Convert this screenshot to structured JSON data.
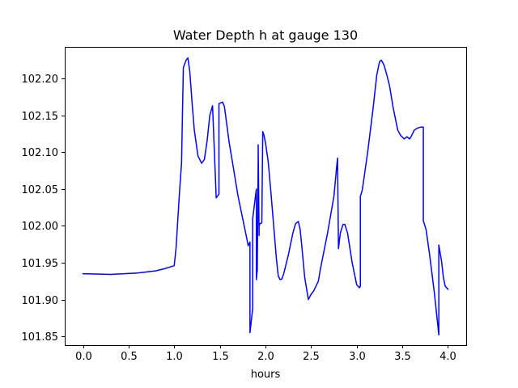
{
  "chart_data": {
    "type": "line",
    "title": "Water Depth h at gauge 130",
    "xlabel": "hours",
    "ylabel": "",
    "xlim": [
      -0.2,
      4.2
    ],
    "ylim": [
      101.838,
      102.243
    ],
    "xticks": [
      0.0,
      0.5,
      1.0,
      1.5,
      2.0,
      2.5,
      3.0,
      3.5,
      4.0
    ],
    "xtick_labels": [
      "0.0",
      "0.5",
      "1.0",
      "1.5",
      "2.0",
      "2.5",
      "3.0",
      "3.5",
      "4.0"
    ],
    "yticks": [
      101.85,
      101.9,
      101.95,
      102.0,
      102.05,
      102.1,
      102.15,
      102.2
    ],
    "ytick_labels": [
      "101.85",
      "101.90",
      "101.95",
      "102.00",
      "102.05",
      "102.10",
      "102.15",
      "102.20"
    ],
    "grid": false,
    "line_color": "#0000ff",
    "series": [
      {
        "name": "",
        "x": [
          0.0,
          0.3,
          0.6,
          0.8,
          0.9,
          0.95,
          1.0,
          1.02,
          1.04,
          1.06,
          1.08,
          1.1,
          1.1,
          1.13,
          1.15,
          1.17,
          1.2,
          1.22,
          1.26,
          1.3,
          1.33,
          1.36,
          1.39,
          1.42,
          1.46,
          1.46,
          1.49,
          1.49,
          1.53,
          1.55,
          1.6,
          1.7,
          1.75,
          1.8,
          1.81,
          1.83,
          1.83,
          1.86,
          1.86,
          1.88,
          1.9,
          1.9,
          1.91,
          1.92,
          1.92,
          1.93,
          1.93,
          1.94,
          1.96,
          1.97,
          1.97,
          1.98,
          2.0,
          2.03,
          2.06,
          2.1,
          2.12,
          2.14,
          2.16,
          2.18,
          2.2,
          2.25,
          2.3,
          2.33,
          2.36,
          2.38,
          2.4,
          2.43,
          2.47,
          2.5,
          2.53,
          2.58,
          2.6,
          2.68,
          2.75,
          2.78,
          2.79,
          2.8,
          2.82,
          2.85,
          2.87,
          2.9,
          2.95,
          3.0,
          3.03,
          3.04,
          3.04,
          3.06,
          3.08,
          3.12,
          3.18,
          3.22,
          3.25,
          3.27,
          3.3,
          3.33,
          3.36,
          3.4,
          3.45,
          3.48,
          3.52,
          3.55,
          3.58,
          3.6,
          3.63,
          3.67,
          3.7,
          3.73,
          3.73,
          3.76,
          3.8,
          3.85,
          3.9,
          3.9,
          3.93,
          3.95,
          3.97,
          4.0
        ],
        "y": [
          101.935,
          101.934,
          101.936,
          101.939,
          101.942,
          101.944,
          101.946,
          101.97,
          102.01,
          102.05,
          102.085,
          102.215,
          102.215,
          102.225,
          102.228,
          102.21,
          102.16,
          102.13,
          102.095,
          102.085,
          102.09,
          102.115,
          102.15,
          102.163,
          102.038,
          102.038,
          102.043,
          102.166,
          102.168,
          102.162,
          102.115,
          102.04,
          102.01,
          101.98,
          101.973,
          101.978,
          101.855,
          101.888,
          102.01,
          102.03,
          102.05,
          101.927,
          101.94,
          102.09,
          102.11,
          101.987,
          102.0,
          102.003,
          102.004,
          102.128,
          102.128,
          102.125,
          102.113,
          102.087,
          102.045,
          101.985,
          101.955,
          101.932,
          101.927,
          101.928,
          101.935,
          101.96,
          101.99,
          102.003,
          102.006,
          101.995,
          101.97,
          101.93,
          101.9,
          101.907,
          101.912,
          101.925,
          101.94,
          101.99,
          102.04,
          102.08,
          102.092,
          101.969,
          101.99,
          102.002,
          102.002,
          101.99,
          101.95,
          101.92,
          101.916,
          101.918,
          102.04,
          102.048,
          102.065,
          102.1,
          102.16,
          102.205,
          102.223,
          102.225,
          102.218,
          102.205,
          102.19,
          102.16,
          102.13,
          102.123,
          102.118,
          102.121,
          102.118,
          102.122,
          102.13,
          102.133,
          102.134,
          102.134,
          102.007,
          101.995,
          101.96,
          101.91,
          101.852,
          101.974,
          101.952,
          101.93,
          101.918,
          101.914
        ]
      }
    ]
  }
}
